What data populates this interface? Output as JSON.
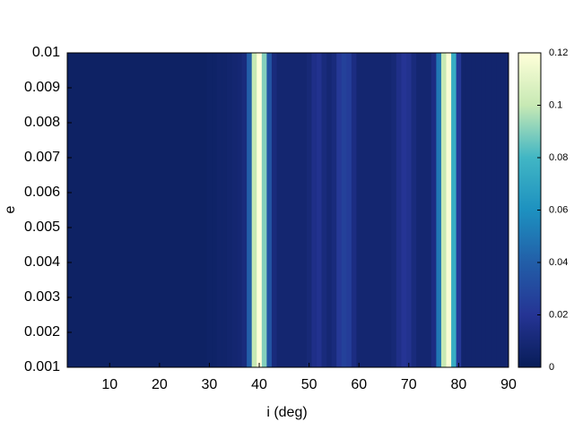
{
  "chart_data": {
    "type": "heatmap",
    "x_label": "i (deg)",
    "y_label": "e",
    "x": [
      2,
      3,
      4,
      5,
      6,
      7,
      8,
      9,
      10,
      11,
      12,
      13,
      14,
      15,
      16,
      17,
      18,
      19,
      20,
      21,
      22,
      23,
      24,
      25,
      26,
      27,
      28,
      29,
      30,
      31,
      32,
      33,
      34,
      35,
      36,
      37,
      38,
      39,
      40,
      41,
      42,
      43,
      44,
      45,
      46,
      47,
      48,
      49,
      50,
      51,
      52,
      53,
      54,
      55,
      56,
      57,
      58,
      59,
      60,
      61,
      62,
      63,
      64,
      65,
      66,
      67,
      68,
      69,
      70,
      71,
      72,
      73,
      74,
      75,
      76,
      77,
      78,
      79,
      80,
      81,
      82,
      83,
      84,
      85,
      86,
      87,
      88,
      89,
      90
    ],
    "values": [
      0.004,
      0.004,
      0.004,
      0.004,
      0.004,
      0.004,
      0.004,
      0.004,
      0.004,
      0.004,
      0.004,
      0.004,
      0.004,
      0.004,
      0.004,
      0.004,
      0.004,
      0.004,
      0.004,
      0.004,
      0.004,
      0.004,
      0.004,
      0.004,
      0.004,
      0.004,
      0.004,
      0.004,
      0.005,
      0.005,
      0.006,
      0.006,
      0.007,
      0.008,
      0.009,
      0.012,
      0.04,
      0.1,
      0.12,
      0.09,
      0.035,
      0.012,
      0.008,
      0.008,
      0.008,
      0.008,
      0.008,
      0.008,
      0.01,
      0.016,
      0.018,
      0.012,
      0.009,
      0.012,
      0.022,
      0.026,
      0.024,
      0.014,
      0.008,
      0.008,
      0.008,
      0.008,
      0.008,
      0.008,
      0.008,
      0.01,
      0.016,
      0.02,
      0.018,
      0.012,
      0.008,
      0.008,
      0.008,
      0.014,
      0.05,
      0.1,
      0.118,
      0.075,
      0.022,
      0.007,
      0.007,
      0.007,
      0.007,
      0.007,
      0.007,
      0.007,
      0.007,
      0.007,
      0.007
    ],
    "xlim": [
      1.5,
      90
    ],
    "xticks": [
      10,
      20,
      30,
      40,
      50,
      60,
      70,
      80,
      90
    ],
    "ylim": [
      0.001,
      0.01
    ],
    "yticks": [
      0.001,
      0.002,
      0.003,
      0.004,
      0.005,
      0.006,
      0.007,
      0.008,
      0.009,
      0.01
    ],
    "zlim": [
      0,
      0.12
    ],
    "zticks": [
      0,
      0.02,
      0.04,
      0.06,
      0.08,
      0.1,
      0.12
    ],
    "colormap": [
      "#081d58",
      "#253494",
      "#225ea8",
      "#1d91c0",
      "#41b6c4",
      "#c7e9b4",
      "#ffffd9"
    ]
  }
}
